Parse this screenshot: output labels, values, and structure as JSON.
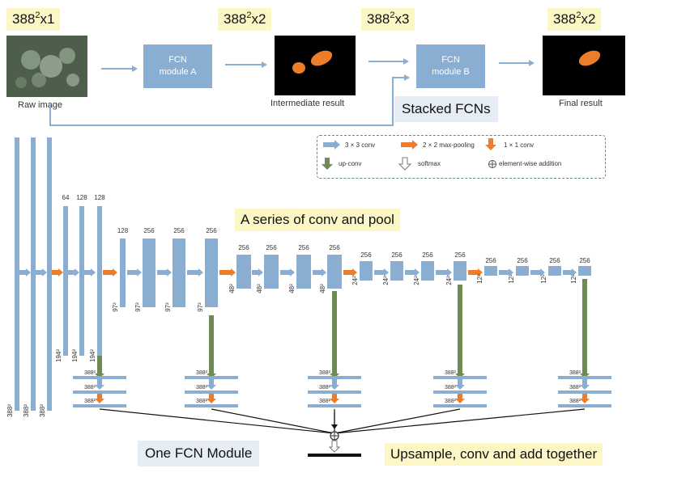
{
  "top_labels": {
    "raw": "388",
    "raw_sup": "2",
    "raw_suffix": "x1",
    "inter": "388",
    "inter_sup": "2",
    "inter_suffix": "x2",
    "stacked_in": "388",
    "stacked_in_sup": "2",
    "stacked_in_suffix": "x3",
    "final": "388",
    "final_sup": "2",
    "final_suffix": "x2"
  },
  "pipeline": {
    "raw_caption": "Raw image",
    "module_a_line1": "FCN",
    "module_a_line2": "module A",
    "inter_caption": "Intermediate result",
    "module_b_line1": "FCN",
    "module_b_line2": "module B",
    "final_caption": "Final result",
    "stacked": "Stacked FCNs"
  },
  "legend": {
    "conv": "3 × 3 conv",
    "maxpool": "2 × 2 max-pooling",
    "one_conv": "1 × 1 conv",
    "upconv": "up-conv",
    "softmax": "softmax",
    "addition": "element-wise addition"
  },
  "annotations": {
    "series": "A series of conv and pool",
    "one_module": "One FCN Module",
    "upsample": "Upsample, conv and add together"
  },
  "channels": [
    "64",
    "128",
    "128",
    "128",
    "256",
    "256",
    "256",
    "256",
    "256",
    "256",
    "256",
    "256",
    "256",
    "256",
    "256",
    "256",
    "256",
    "256",
    "256",
    "256"
  ],
  "sizes": {
    "s388": "388²",
    "s194": "194²",
    "s97": "97²",
    "s48": "48²",
    "s24": "24²",
    "s12": "12²"
  },
  "colors": {
    "conv_blue": "#8aaed1",
    "pool_orange": "#ee7d2a",
    "upconv_green": "#6f8a57",
    "label_yellow": "#fdf6c5",
    "label_blue": "#e6edf4"
  }
}
